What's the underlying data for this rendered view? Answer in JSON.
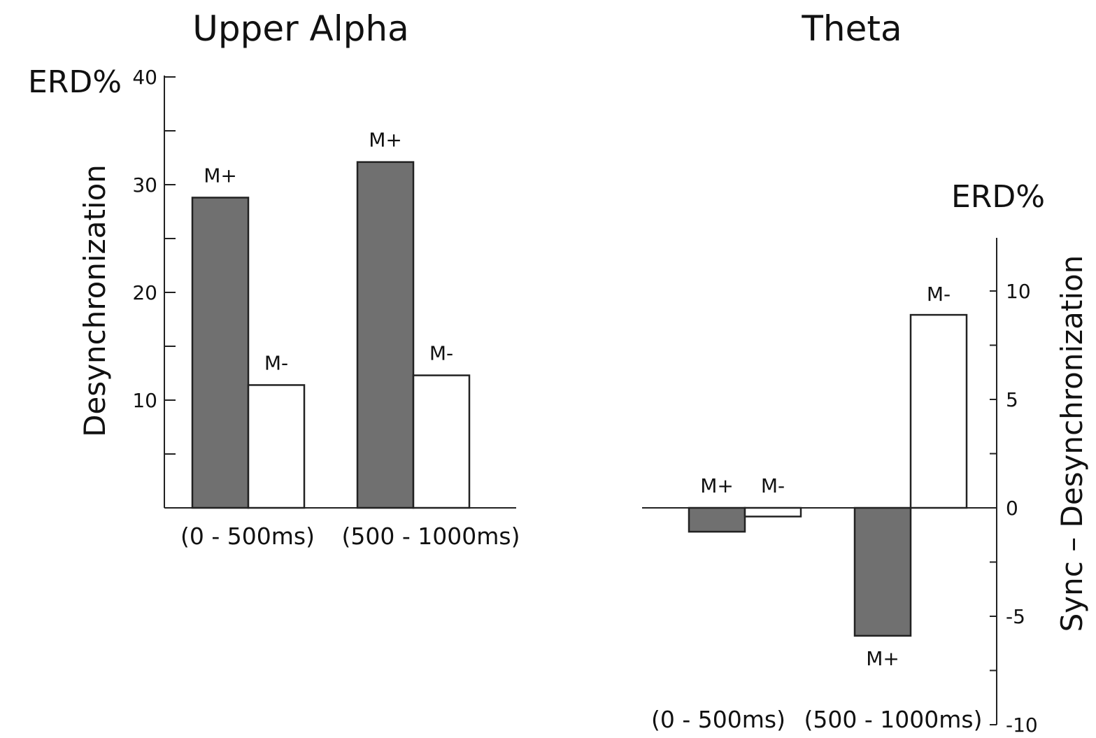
{
  "colors": {
    "m_plus": "#707070",
    "m_minus": "#ffffff",
    "ink": "#222222"
  },
  "chart_data": [
    {
      "type": "bar",
      "title": "Upper Alpha",
      "unit_label": "ERD%",
      "ylabel": "Desynchronization",
      "categories": [
        "(0 - 500ms)",
        "(500 - 1000ms)"
      ],
      "series": [
        {
          "name": "M+",
          "values": [
            28.8,
            32.1
          ]
        },
        {
          "name": "M-",
          "values": [
            11.4,
            12.3
          ]
        }
      ],
      "ylim": [
        0,
        40
      ],
      "yticks": [
        10,
        20,
        30,
        40
      ],
      "grid": false,
      "legend": "none"
    },
    {
      "type": "bar",
      "title": "Theta",
      "unit_label": "ERD%",
      "ylabel": "Sync – Desynchronization",
      "categories": [
        "(0 - 500ms)",
        "(500 - 1000ms)"
      ],
      "series": [
        {
          "name": "M+",
          "values": [
            -1.1,
            -5.9
          ]
        },
        {
          "name": "M-",
          "values": [
            -0.4,
            8.9
          ]
        }
      ],
      "ylim": [
        -10,
        10
      ],
      "yticks": [
        -10,
        -5,
        0,
        5,
        10
      ],
      "ytick_labels": [
        "-10",
        "-5",
        "0",
        "5",
        "10"
      ],
      "grid": false,
      "legend": "none"
    }
  ]
}
